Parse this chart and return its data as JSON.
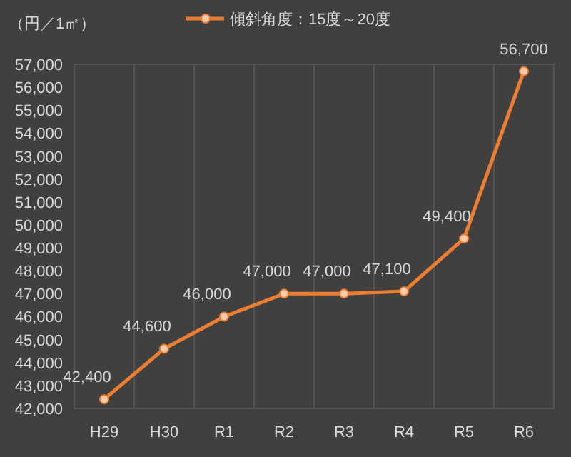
{
  "chart_data": {
    "type": "line",
    "ylabel": "（円／1㎡）",
    "categories": [
      "H29",
      "H30",
      "R1",
      "R2",
      "R3",
      "R4",
      "R5",
      "R6"
    ],
    "series": [
      {
        "name": "傾斜角度：15度～20度",
        "color": "#ed7d31",
        "values": [
          42400,
          44600,
          46000,
          47000,
          47000,
          47100,
          49400,
          56700
        ]
      }
    ],
    "ylim": [
      42000,
      57000
    ],
    "yticks": [
      {
        "value": 42000,
        "label": "42,000"
      },
      {
        "value": 43000,
        "label": "43,000"
      },
      {
        "value": 44000,
        "label": "44,000"
      },
      {
        "value": 45000,
        "label": "45,000"
      },
      {
        "value": 46000,
        "label": "46,000"
      },
      {
        "value": 47000,
        "label": "47,000"
      },
      {
        "value": 48000,
        "label": "48,000"
      },
      {
        "value": 49000,
        "label": "49,000"
      },
      {
        "value": 50000,
        "label": "50,000"
      },
      {
        "value": 51000,
        "label": "51,000"
      },
      {
        "value": 52000,
        "label": "52,000"
      },
      {
        "value": 53000,
        "label": "53,000"
      },
      {
        "value": 54000,
        "label": "54,000"
      },
      {
        "value": 55000,
        "label": "55,000"
      },
      {
        "value": 56000,
        "label": "56,000"
      },
      {
        "value": 57000,
        "label": "57,000"
      }
    ],
    "value_labels": [
      [
        "42,400",
        "44,600",
        "46,000",
        "47,000",
        "47,000",
        "47,100",
        "49,400",
        "56,700"
      ]
    ],
    "grid": "x",
    "legend": "top",
    "marker": "circle",
    "line_style": "solid"
  }
}
